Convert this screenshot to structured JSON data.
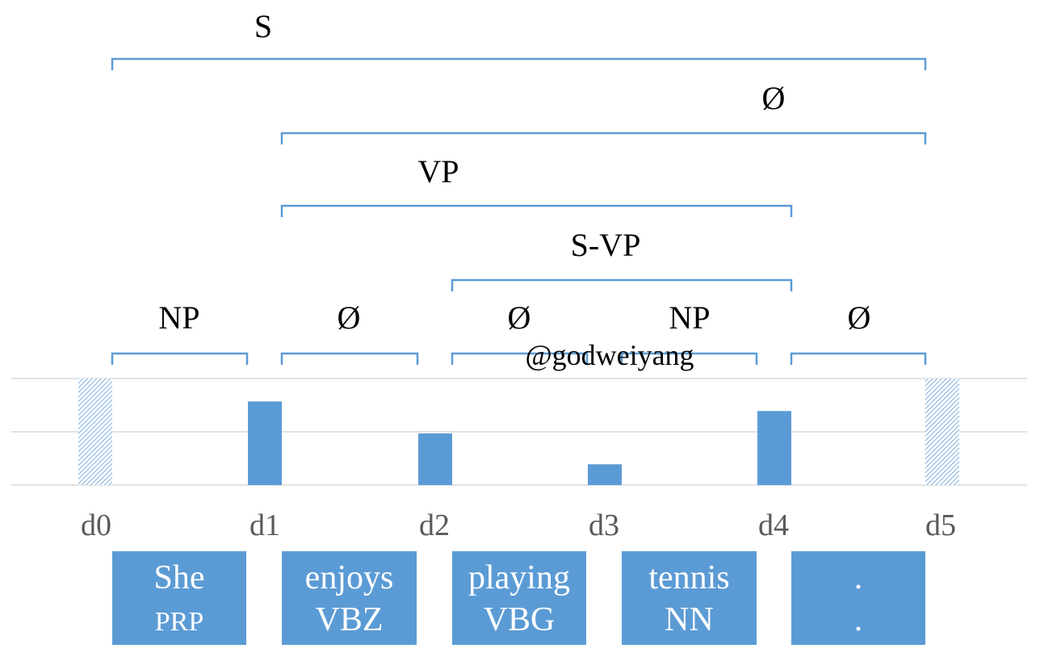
{
  "colors": {
    "accent": "#5B9BD5",
    "grid": "#D9D9D9",
    "label": "#000000",
    "tick": "#595959",
    "token_text": "#FFFFFF"
  },
  "constituents": [
    {
      "label": "S",
      "start": 0,
      "end": 5,
      "level": 5
    },
    {
      "label": "Ø",
      "start": 1,
      "end": 5,
      "level": 4
    },
    {
      "label": "VP",
      "start": 1,
      "end": 4,
      "level": 3
    },
    {
      "label": "S-VP",
      "start": 2,
      "end": 4,
      "level": 2
    },
    {
      "label": "NP",
      "start": 0,
      "end": 1,
      "level": 1
    },
    {
      "label": "Ø",
      "start": 1,
      "end": 2,
      "level": 1
    },
    {
      "label": "Ø",
      "start": 2,
      "end": 3,
      "level": 1
    },
    {
      "label": "NP",
      "start": 3,
      "end": 4,
      "level": 1
    },
    {
      "label": "Ø",
      "start": 4,
      "end": 5,
      "level": 1
    }
  ],
  "watermark": "@godweiyang",
  "chart_data": {
    "type": "bar",
    "categories": [
      "d0",
      "d1",
      "d2",
      "d3",
      "d4",
      "d5"
    ],
    "values": [
      2,
      1.57,
      0.97,
      0.39,
      1.39,
      2
    ],
    "hatched": [
      true,
      false,
      false,
      false,
      false,
      true
    ],
    "ylim": [
      0,
      2
    ],
    "grid": true
  },
  "tokens": [
    {
      "word": "She",
      "tag": "PRP"
    },
    {
      "word": "enjoys",
      "tag": "VBZ"
    },
    {
      "word": "playing",
      "tag": "VBG"
    },
    {
      "word": "tennis",
      "tag": "NN"
    },
    {
      "word": ".",
      "tag": "."
    }
  ]
}
